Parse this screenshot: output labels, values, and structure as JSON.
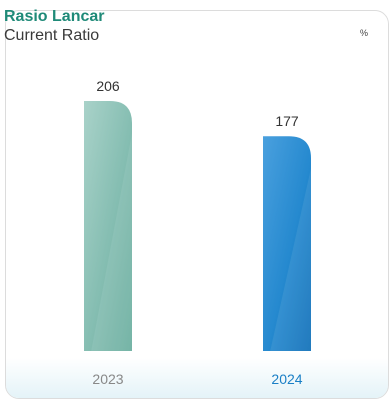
{
  "header": {
    "title": "Rasio Lancar",
    "subtitle": "Current Ratio",
    "unit": "%"
  },
  "chart_data": {
    "type": "bar",
    "categories": [
      "2023",
      "2024"
    ],
    "values": [
      206,
      177
    ],
    "title": "Rasio Lancar",
    "subtitle": "Current Ratio",
    "unit": "%",
    "grid": false,
    "bar_colors": [
      "#7fb9ad",
      "#1a7fc6"
    ],
    "category_label_colors": [
      "#888888",
      "#1a7fc6"
    ],
    "value_labels": [
      "206",
      "177"
    ]
  }
}
